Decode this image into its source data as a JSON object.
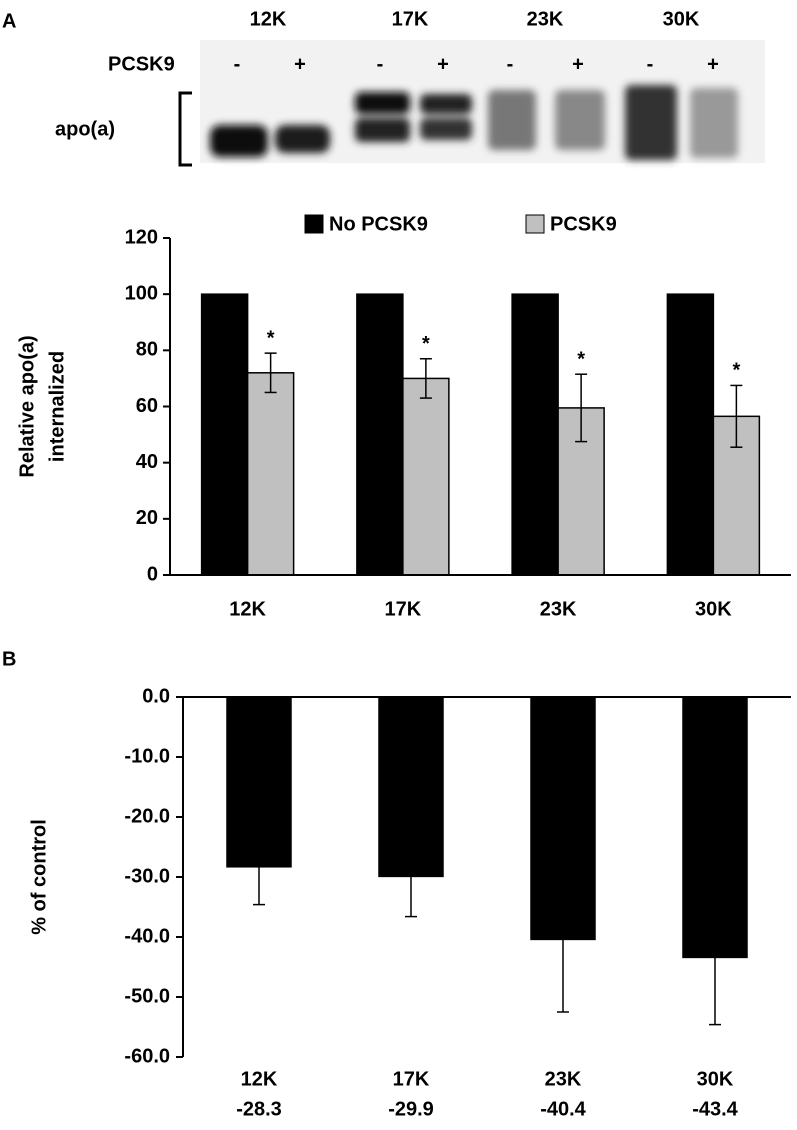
{
  "blot": {
    "sizes": [
      "12K",
      "17K",
      "23K",
      "30K"
    ],
    "treatment_label": "PCSK9",
    "signs": [
      "-",
      "+",
      "-",
      "+",
      "-",
      "+",
      "-",
      "+"
    ],
    "band_label": "apo(a)"
  },
  "chart_data": [
    {
      "type": "bar",
      "panel_label": "A",
      "categories": [
        "12K",
        "17K",
        "23K",
        "30K"
      ],
      "series": [
        {
          "name": "No PCSK9",
          "color": "#000000",
          "values": [
            100,
            100,
            100,
            100
          ]
        },
        {
          "name": "PCSK9",
          "color": "#c0c0c0",
          "values": [
            72,
            70,
            59.5,
            56.5
          ],
          "errors": [
            7,
            7,
            12,
            11
          ]
        }
      ],
      "annotations": [
        "*",
        "*",
        "*",
        "*"
      ],
      "ylabel": [
        "Relative apo(a)",
        "internalized"
      ],
      "ylim": [
        0,
        120
      ],
      "yticks": [
        0,
        20,
        40,
        60,
        80,
        100,
        120
      ],
      "legend": "top"
    },
    {
      "type": "bar",
      "panel_label": "B",
      "categories": [
        "12K",
        "17K",
        "23K",
        "30K"
      ],
      "series": [
        {
          "color": "#000000",
          "values": [
            -28.3,
            -29.9,
            -40.4,
            -43.4
          ],
          "errors": [
            6.3,
            6.7,
            12.1,
            11.2
          ]
        }
      ],
      "ylabel": [
        "% of control"
      ],
      "ylim": [
        -60,
        0
      ],
      "yticks": [
        {
          "value": 0,
          "label": "0.0"
        },
        {
          "value": -10,
          "label": "-10.0"
        },
        {
          "value": -20,
          "label": "-20.0"
        },
        {
          "value": -30,
          "label": "-30.0"
        },
        {
          "value": -40,
          "label": "-40.0"
        },
        {
          "value": -50,
          "label": "-50.0"
        },
        {
          "value": -60,
          "label": "-60.0"
        }
      ]
    }
  ]
}
